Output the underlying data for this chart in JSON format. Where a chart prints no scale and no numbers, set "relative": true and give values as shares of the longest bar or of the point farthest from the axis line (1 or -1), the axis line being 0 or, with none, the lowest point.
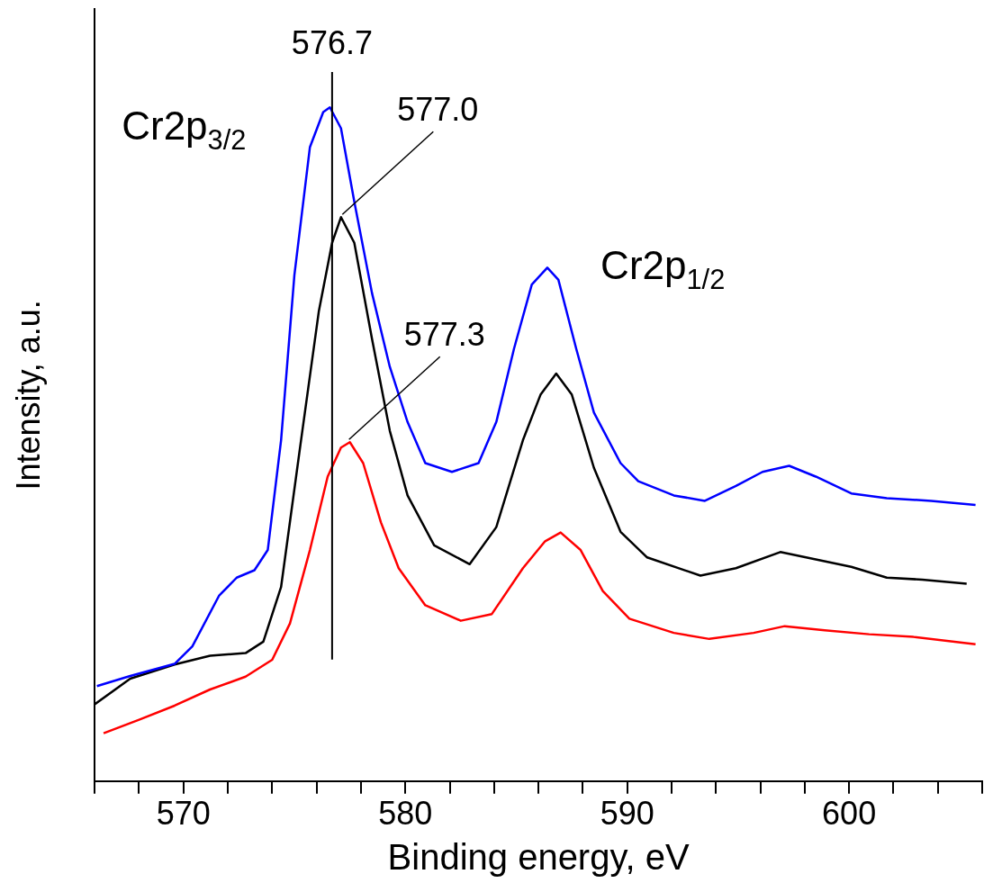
{
  "chart_data": {
    "type": "line",
    "xlabel": "Binding energy, eV",
    "ylabel": "Intensity, a.u.",
    "relative": true,
    "grid": false,
    "legend": false,
    "marker": "none",
    "line_style": "solid",
    "xlim": [
      566,
      606
    ],
    "xticks": [
      {
        "value": 566,
        "label": null
      },
      {
        "value": 568,
        "label": null
      },
      570,
      {
        "value": 572,
        "label": null
      },
      {
        "value": 574,
        "label": null
      },
      {
        "value": 576,
        "label": null
      },
      {
        "value": 578,
        "label": null
      },
      580,
      {
        "value": 582,
        "label": null
      },
      {
        "value": 584,
        "label": null
      },
      {
        "value": 586,
        "label": null
      },
      {
        "value": 588,
        "label": null
      },
      590,
      {
        "value": 592,
        "label": null
      },
      {
        "value": 594,
        "label": null
      },
      {
        "value": 596,
        "label": null
      },
      {
        "value": 598,
        "label": null
      },
      600,
      {
        "value": 602,
        "label": null
      },
      {
        "value": 604,
        "label": null
      },
      {
        "value": 606,
        "label": null
      }
    ],
    "series": [
      {
        "color": "#0000ff",
        "x": [
          566.1,
          567.6,
          569.6,
          570.4,
          571.6,
          572.4,
          573.2,
          573.8,
          574.4,
          575.0,
          575.7,
          576.3,
          576.6,
          577.1,
          577.7,
          578.5,
          579.3,
          580.1,
          580.9,
          582.1,
          583.3,
          584.1,
          584.9,
          585.7,
          586.4,
          586.9,
          587.7,
          588.5,
          589.7,
          590.5,
          592.1,
          593.5,
          594.9,
          596.1,
          597.3,
          598.5,
          600.1,
          601.7,
          603.7,
          605.7
        ],
        "values": [
          0.141,
          0.156,
          0.174,
          0.2,
          0.275,
          0.302,
          0.313,
          0.343,
          0.506,
          0.751,
          0.941,
          0.993,
          1.0,
          0.969,
          0.86,
          0.724,
          0.615,
          0.533,
          0.472,
          0.459,
          0.472,
          0.533,
          0.642,
          0.737,
          0.762,
          0.744,
          0.642,
          0.547,
          0.472,
          0.445,
          0.424,
          0.416,
          0.438,
          0.459,
          0.468,
          0.452,
          0.427,
          0.42,
          0.416,
          0.41
        ]
      },
      {
        "color": "#000000",
        "x": [
          566.0,
          567.6,
          569.6,
          571.2,
          572.8,
          573.6,
          574.4,
          575.3,
          576.1,
          576.7,
          577.1,
          577.7,
          578.5,
          579.3,
          580.1,
          581.3,
          582.9,
          584.1,
          585.3,
          586.1,
          586.8,
          587.5,
          588.5,
          589.7,
          590.9,
          593.3,
          594.9,
          596.9,
          598.5,
          600.1,
          601.7,
          603.3,
          605.3
        ],
        "values": [
          0.114,
          0.152,
          0.173,
          0.186,
          0.19,
          0.207,
          0.288,
          0.506,
          0.697,
          0.799,
          0.837,
          0.799,
          0.656,
          0.52,
          0.424,
          0.35,
          0.322,
          0.377,
          0.506,
          0.574,
          0.605,
          0.574,
          0.465,
          0.37,
          0.332,
          0.305,
          0.316,
          0.34,
          0.329,
          0.318,
          0.302,
          0.299,
          0.293
        ]
      },
      {
        "color": "#ff0000",
        "x": [
          566.4,
          568.0,
          569.6,
          571.2,
          572.8,
          574.0,
          574.8,
          575.7,
          576.5,
          577.1,
          577.5,
          578.1,
          578.9,
          579.7,
          580.9,
          582.5,
          583.9,
          585.3,
          586.3,
          587.0,
          587.9,
          588.9,
          590.1,
          592.1,
          593.7,
          595.7,
          597.1,
          598.9,
          600.9,
          602.9,
          605.7
        ],
        "values": [
          0.071,
          0.091,
          0.112,
          0.136,
          0.155,
          0.18,
          0.234,
          0.343,
          0.452,
          0.495,
          0.503,
          0.472,
          0.384,
          0.316,
          0.261,
          0.238,
          0.248,
          0.316,
          0.356,
          0.369,
          0.343,
          0.282,
          0.241,
          0.22,
          0.211,
          0.22,
          0.23,
          0.224,
          0.218,
          0.214,
          0.203
        ]
      }
    ],
    "ref_lines": [
      {
        "axis": "x",
        "value": 576.7,
        "label": "576.7",
        "color": "#000000"
      }
    ],
    "annotations": [
      "Cr2p$_{3/2}$",
      "Cr2p$_{1/2}$",
      {
        "text": "577.0",
        "x": 577.0,
        "y": 0.837
      },
      {
        "text": "577.3",
        "x": 577.3,
        "y": 0.503
      }
    ]
  }
}
